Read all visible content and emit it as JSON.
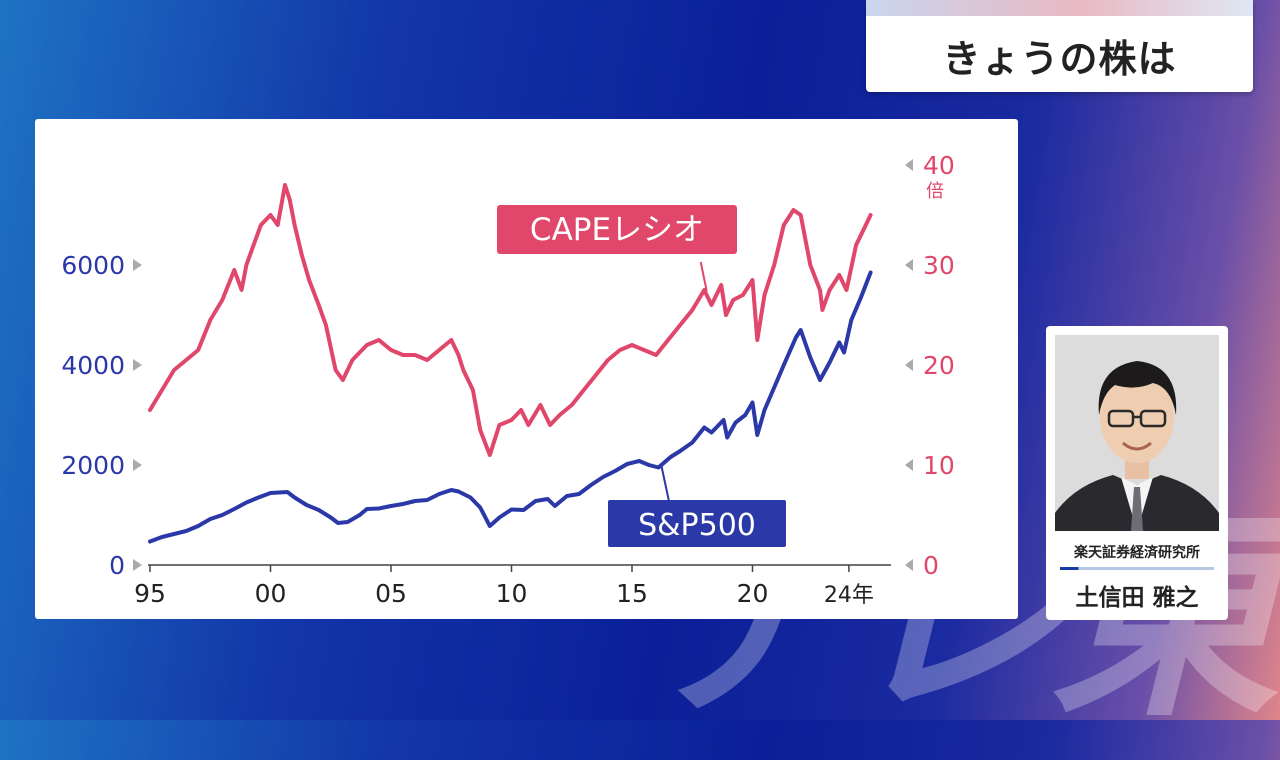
{
  "program": {
    "segment_title": "きょうの株は",
    "watermark": "テレ東"
  },
  "chart_data": {
    "type": "line",
    "x_tick_labels": [
      "95",
      "00",
      "05",
      "10",
      "15",
      "20",
      "24年"
    ],
    "x_ticks": [
      1995,
      2000,
      2005,
      2010,
      2015,
      2020,
      2024
    ],
    "xlim": [
      1995,
      2025.0
    ],
    "left_axis": {
      "ticks": [
        0,
        2000,
        4000,
        6000
      ],
      "tick_labels": [
        "0",
        "2000",
        "4000",
        "6000"
      ],
      "ylim": [
        0,
        8000
      ]
    },
    "right_axis": {
      "ticks": [
        0,
        10,
        20,
        30,
        40
      ],
      "tick_labels": [
        "0",
        "10",
        "20",
        "30",
        "40"
      ],
      "ylim": [
        0,
        40
      ],
      "unit": "倍"
    },
    "series": [
      {
        "name": "CAPEレシオ",
        "axis": "right",
        "color": "#e0476a",
        "points": [
          [
            1995.0,
            15.5
          ],
          [
            1995.5,
            17.5
          ],
          [
            1996.0,
            19.5
          ],
          [
            1996.5,
            20.5
          ],
          [
            1997.0,
            21.5
          ],
          [
            1997.5,
            24.5
          ],
          [
            1998.0,
            26.5
          ],
          [
            1998.5,
            29.5
          ],
          [
            1998.8,
            27.5
          ],
          [
            1999.0,
            30.0
          ],
          [
            1999.3,
            32.0
          ],
          [
            1999.6,
            34.0
          ],
          [
            2000.0,
            35.0
          ],
          [
            2000.3,
            34.0
          ],
          [
            2000.6,
            38.0
          ],
          [
            2000.8,
            36.5
          ],
          [
            2001.0,
            34.0
          ],
          [
            2001.3,
            31.0
          ],
          [
            2001.6,
            28.5
          ],
          [
            2002.0,
            26.0
          ],
          [
            2002.3,
            24.0
          ],
          [
            2002.7,
            19.5
          ],
          [
            2003.0,
            18.5
          ],
          [
            2003.4,
            20.5
          ],
          [
            2004.0,
            22.0
          ],
          [
            2004.5,
            22.5
          ],
          [
            2005.0,
            21.5
          ],
          [
            2005.5,
            21.0
          ],
          [
            2006.0,
            21.0
          ],
          [
            2006.5,
            20.5
          ],
          [
            2007.0,
            21.5
          ],
          [
            2007.5,
            22.5
          ],
          [
            2007.8,
            21.0
          ],
          [
            2008.0,
            19.5
          ],
          [
            2008.4,
            17.5
          ],
          [
            2008.7,
            13.5
          ],
          [
            2009.1,
            11.0
          ],
          [
            2009.5,
            14.0
          ],
          [
            2010.0,
            14.5
          ],
          [
            2010.4,
            15.5
          ],
          [
            2010.7,
            14.0
          ],
          [
            2011.2,
            16.0
          ],
          [
            2011.6,
            14.0
          ],
          [
            2012.0,
            15.0
          ],
          [
            2012.5,
            16.0
          ],
          [
            2013.0,
            17.5
          ],
          [
            2013.5,
            19.0
          ],
          [
            2014.0,
            20.5
          ],
          [
            2014.5,
            21.5
          ],
          [
            2015.0,
            22.0
          ],
          [
            2015.5,
            21.5
          ],
          [
            2016.0,
            21.0
          ],
          [
            2016.5,
            22.5
          ],
          [
            2017.0,
            24.0
          ],
          [
            2017.5,
            25.5
          ],
          [
            2018.0,
            27.5
          ],
          [
            2018.3,
            26.0
          ],
          [
            2018.7,
            28.0
          ],
          [
            2018.9,
            25.0
          ],
          [
            2019.2,
            26.5
          ],
          [
            2019.6,
            27.0
          ],
          [
            2020.0,
            28.5
          ],
          [
            2020.2,
            22.5
          ],
          [
            2020.5,
            27.0
          ],
          [
            2020.9,
            30.0
          ],
          [
            2021.3,
            34.0
          ],
          [
            2021.7,
            35.5
          ],
          [
            2022.0,
            35.0
          ],
          [
            2022.4,
            30.0
          ],
          [
            2022.8,
            27.5
          ],
          [
            2022.9,
            25.5
          ],
          [
            2023.2,
            27.5
          ],
          [
            2023.6,
            29.0
          ],
          [
            2023.9,
            27.5
          ],
          [
            2024.3,
            32.0
          ],
          [
            2024.6,
            33.5
          ],
          [
            2024.9,
            35.0
          ]
        ]
      },
      {
        "name": "S&P500",
        "axis": "left",
        "color": "#2b38a8",
        "points": [
          [
            1995.0,
            470
          ],
          [
            1995.5,
            560
          ],
          [
            1996.0,
            620
          ],
          [
            1996.5,
            680
          ],
          [
            1997.0,
            780
          ],
          [
            1997.5,
            920
          ],
          [
            1998.0,
            1000
          ],
          [
            1998.5,
            1120
          ],
          [
            1999.0,
            1250
          ],
          [
            1999.5,
            1350
          ],
          [
            2000.0,
            1440
          ],
          [
            2000.7,
            1460
          ],
          [
            2001.0,
            1350
          ],
          [
            2001.5,
            1200
          ],
          [
            2002.0,
            1100
          ],
          [
            2002.5,
            950
          ],
          [
            2002.8,
            840
          ],
          [
            2003.2,
            860
          ],
          [
            2003.7,
            1000
          ],
          [
            2004.0,
            1120
          ],
          [
            2004.5,
            1130
          ],
          [
            2005.0,
            1180
          ],
          [
            2005.5,
            1220
          ],
          [
            2006.0,
            1280
          ],
          [
            2006.5,
            1300
          ],
          [
            2007.0,
            1420
          ],
          [
            2007.5,
            1500
          ],
          [
            2007.8,
            1470
          ],
          [
            2008.3,
            1350
          ],
          [
            2008.7,
            1150
          ],
          [
            2009.1,
            780
          ],
          [
            2009.5,
            950
          ],
          [
            2010.0,
            1110
          ],
          [
            2010.5,
            1100
          ],
          [
            2011.0,
            1280
          ],
          [
            2011.5,
            1320
          ],
          [
            2011.8,
            1180
          ],
          [
            2012.3,
            1380
          ],
          [
            2012.8,
            1420
          ],
          [
            2013.3,
            1600
          ],
          [
            2013.8,
            1760
          ],
          [
            2014.3,
            1880
          ],
          [
            2014.8,
            2020
          ],
          [
            2015.3,
            2080
          ],
          [
            2015.7,
            2000
          ],
          [
            2016.1,
            1950
          ],
          [
            2016.6,
            2160
          ],
          [
            2017.0,
            2280
          ],
          [
            2017.5,
            2450
          ],
          [
            2018.0,
            2750
          ],
          [
            2018.3,
            2650
          ],
          [
            2018.8,
            2900
          ],
          [
            2018.95,
            2550
          ],
          [
            2019.3,
            2850
          ],
          [
            2019.7,
            3000
          ],
          [
            2020.0,
            3250
          ],
          [
            2020.2,
            2600
          ],
          [
            2020.5,
            3100
          ],
          [
            2020.9,
            3550
          ],
          [
            2021.3,
            4000
          ],
          [
            2021.8,
            4550
          ],
          [
            2022.0,
            4700
          ],
          [
            2022.4,
            4150
          ],
          [
            2022.8,
            3700
          ],
          [
            2023.2,
            4050
          ],
          [
            2023.6,
            4450
          ],
          [
            2023.8,
            4250
          ],
          [
            2024.1,
            4900
          ],
          [
            2024.5,
            5350
          ],
          [
            2024.9,
            5850
          ]
        ]
      }
    ]
  },
  "chart_labels": {
    "cape": "CAPEレシオ",
    "sp500": "S&P500"
  },
  "commentator": {
    "affiliation": "楽天証券経済研究所",
    "name": "土信田 雅之"
  }
}
